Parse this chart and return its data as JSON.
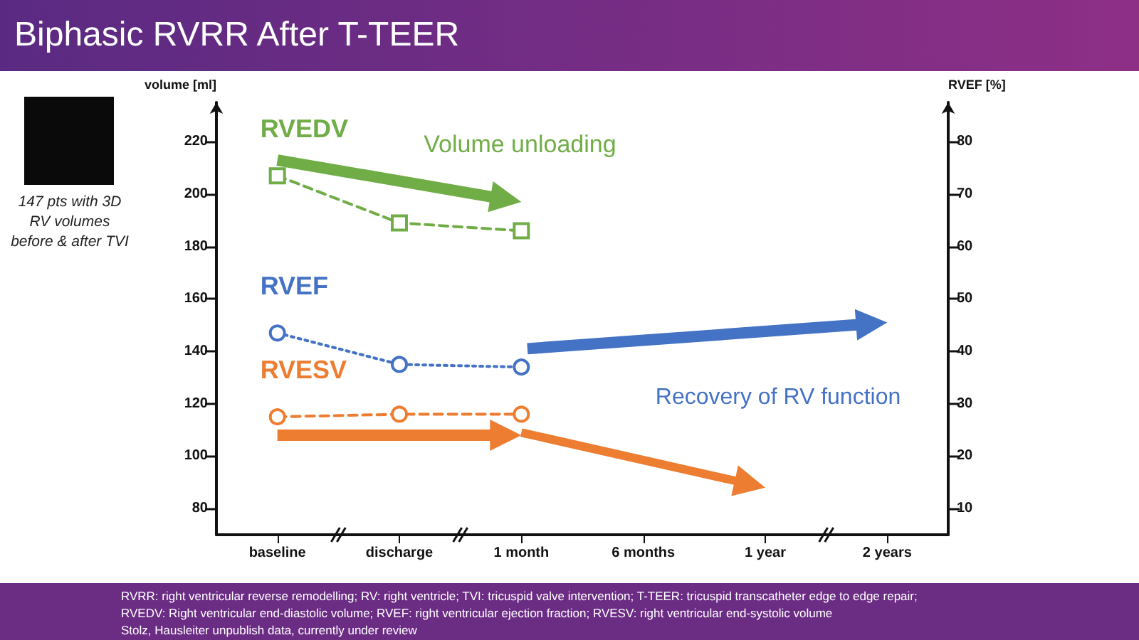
{
  "chart_data": {
    "type": "line",
    "title": "Biphasic RVRR After T-TEER",
    "categories": [
      "baseline",
      "discharge",
      "1 month",
      "6 months",
      "1 year",
      "2 years"
    ],
    "ylabel": "volume [ml]",
    "y2label": "RVEF [%]",
    "ylim": [
      70,
      235
    ],
    "yticks": [
      80,
      100,
      120,
      140,
      160,
      180,
      200,
      220
    ],
    "y2lim": [
      5,
      87.5
    ],
    "y2ticks": [
      10,
      20,
      30,
      40,
      50,
      60,
      70,
      80
    ],
    "grid": false,
    "legend": false,
    "series": [
      {
        "name": "RVEDV",
        "color": "#70ad47",
        "values": [
          207,
          189,
          186,
          null,
          null,
          null
        ],
        "marker": "square",
        "line_style": "dashed"
      },
      {
        "name": "RVEF",
        "color": "#4472c4",
        "values": [
          43.5,
          37.5,
          37,
          null,
          null,
          null
        ],
        "axis": "y2",
        "marker": "circle",
        "line_style": "dotted"
      },
      {
        "name": "RVESV",
        "color": "#ed7d31",
        "values": [
          115,
          116,
          116,
          null,
          null,
          null
        ],
        "marker": "circle",
        "line_style": "dashed"
      }
    ],
    "annotations": [
      "147 pts with 3D RV volumes before & after TVI",
      "Volume unloading",
      "Recovery of RV function",
      "RVRR: right ventricular reverse remodelling; RV: right ventricle; TVI: tricuspid valve intervention; T-TEER: tricuspid transcatheter edge to edge repair;",
      "RVEDV: Right ventricular end-diastolic volume; RVEF: right ventricular ejection fraction; RVESV: right ventricular end-systolic volume",
      "Stolz, Hausleiter unpublish data, currently under review"
    ]
  }
}
